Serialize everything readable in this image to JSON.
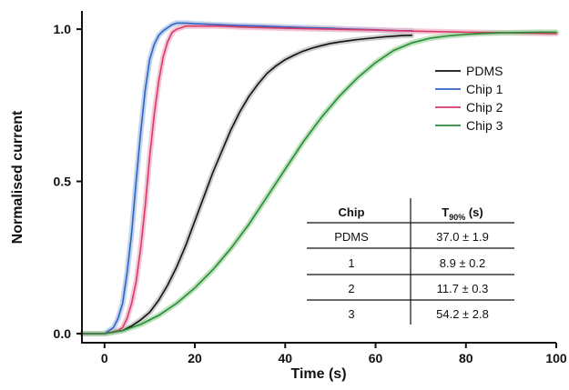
{
  "chart_data": {
    "type": "line",
    "title": "",
    "xlabel": "Time (s)",
    "ylabel": "Normalised current",
    "xlim": [
      -5,
      100
    ],
    "ylim": [
      -0.03,
      1.06
    ],
    "x_ticks": [
      0,
      20,
      40,
      60,
      80,
      100
    ],
    "y_ticks": [
      0.0,
      0.5,
      1.0
    ],
    "y_tick_labels": [
      "0.0",
      "0.5",
      "1.0"
    ],
    "grid": false,
    "legend_position": "right",
    "series": [
      {
        "name": "PDMS",
        "color": "#111111",
        "band_color": "#b8b8b8",
        "x": [
          -5,
          0,
          2,
          4,
          6,
          8,
          10,
          12,
          14,
          16,
          18,
          20,
          22,
          24,
          26,
          28,
          30,
          32,
          34,
          36,
          38,
          40,
          42,
          44,
          46,
          48,
          50,
          52,
          54,
          56,
          58,
          60,
          62,
          64,
          66,
          68
        ],
        "y": [
          0.0,
          0.0,
          0.005,
          0.01,
          0.025,
          0.045,
          0.07,
          0.11,
          0.16,
          0.22,
          0.29,
          0.37,
          0.45,
          0.53,
          0.6,
          0.67,
          0.73,
          0.78,
          0.82,
          0.855,
          0.88,
          0.9,
          0.915,
          0.928,
          0.938,
          0.946,
          0.953,
          0.958,
          0.962,
          0.966,
          0.969,
          0.972,
          0.975,
          0.977,
          0.979,
          0.98
        ]
      },
      {
        "name": "Chip 1",
        "color": "#2f64c0",
        "band_color": "#a9c2e8",
        "x": [
          -5,
          0,
          2,
          3,
          4,
          5,
          6,
          7,
          8,
          9,
          10,
          11,
          12,
          13,
          14,
          15,
          16,
          18,
          20,
          25,
          30,
          35,
          40,
          45,
          50,
          55,
          60,
          65,
          68
        ],
        "y": [
          0.0,
          0.0,
          0.02,
          0.05,
          0.1,
          0.2,
          0.33,
          0.5,
          0.66,
          0.8,
          0.9,
          0.95,
          0.98,
          0.995,
          1.005,
          1.015,
          1.02,
          1.02,
          1.018,
          1.015,
          1.012,
          1.01,
          1.007,
          1.005,
          1.003,
          1.0,
          0.998,
          0.995,
          0.995
        ]
      },
      {
        "name": "Chip 2",
        "color": "#d83a6a",
        "band_color": "#f0b0c4",
        "x": [
          -5,
          0,
          3,
          4,
          5,
          6,
          7,
          8,
          9,
          10,
          11,
          12,
          13,
          14,
          15,
          16,
          18,
          20,
          25,
          30,
          40,
          50,
          60,
          70,
          80,
          90,
          100
        ],
        "y": [
          0.0,
          0.0,
          0.01,
          0.02,
          0.05,
          0.1,
          0.17,
          0.28,
          0.42,
          0.58,
          0.72,
          0.83,
          0.91,
          0.96,
          0.99,
          1.0,
          1.01,
          1.01,
          1.01,
          1.007,
          1.003,
          1.0,
          0.997,
          0.993,
          0.99,
          0.988,
          0.985
        ]
      },
      {
        "name": "Chip 3",
        "color": "#2a8a3a",
        "band_color": "#9fd6a0",
        "x": [
          -5,
          0,
          4,
          8,
          12,
          16,
          20,
          24,
          28,
          32,
          36,
          40,
          44,
          48,
          52,
          56,
          60,
          64,
          68,
          72,
          76,
          80,
          84,
          88,
          92,
          96,
          100
        ],
        "y": [
          0.0,
          0.0,
          0.01,
          0.03,
          0.06,
          0.1,
          0.15,
          0.21,
          0.28,
          0.36,
          0.45,
          0.54,
          0.63,
          0.71,
          0.78,
          0.84,
          0.89,
          0.93,
          0.955,
          0.97,
          0.978,
          0.983,
          0.986,
          0.988,
          0.989,
          0.99,
          0.99
        ]
      }
    ],
    "table": {
      "headers": [
        "Chip",
        "T",
        "90%",
        " (s)"
      ],
      "rows": [
        [
          "PDMS",
          "37.0 ± 1.9"
        ],
        [
          "1",
          "8.9 ± 0.2"
        ],
        [
          "2",
          "11.7 ± 0.3"
        ],
        [
          "3",
          "54.2 ± 2.8"
        ]
      ]
    }
  }
}
